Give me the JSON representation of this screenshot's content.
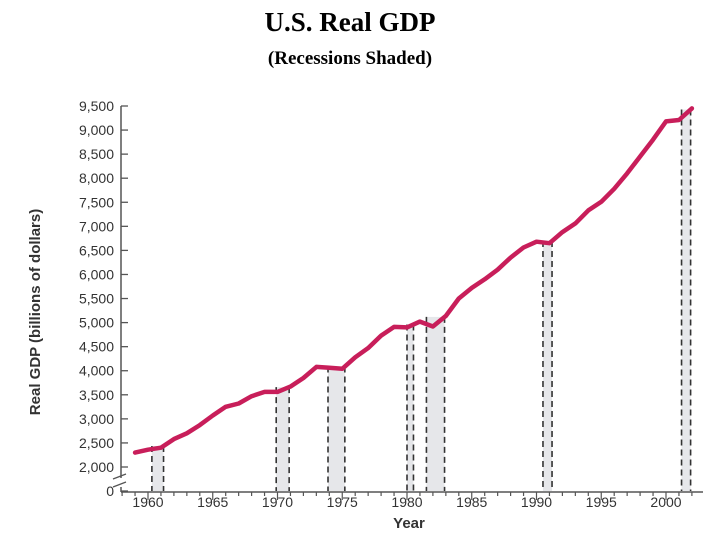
{
  "chart_data": {
    "type": "line",
    "title": "U.S. Real GDP",
    "subtitle": "(Recessions Shaded)",
    "xlabel": "Year",
    "ylabel": "Real GDP (billions of dollars)",
    "xlim": [
      1957,
      2003
    ],
    "ylim": [
      0,
      9500
    ],
    "axis_break": true,
    "grid": false,
    "x_ticks": [
      1960,
      1965,
      1970,
      1975,
      1980,
      1985,
      1990,
      1995,
      2000
    ],
    "x_tick_labels": [
      "1960",
      "1965",
      "1970",
      "1975",
      "1980",
      "1985",
      "1990",
      "1995",
      "2000"
    ],
    "y_ticks": [
      0,
      2000,
      2500,
      3000,
      3500,
      4000,
      4500,
      5000,
      5500,
      6000,
      6500,
      7000,
      7500,
      8000,
      8500,
      9000,
      9500
    ],
    "y_tick_labels": [
      "0",
      "2,000",
      "2,500",
      "3,000",
      "3,500",
      "4,000",
      "4,500",
      "5,000",
      "5,500",
      "6,000",
      "6,500",
      "7,000",
      "7,500",
      "8,000",
      "8,500",
      "9,000",
      "9,500"
    ],
    "series": [
      {
        "color": "#c81e5a",
        "x": [
          1959,
          1960,
          1961,
          1962,
          1963,
          1964,
          1965,
          1966,
          1967,
          1968,
          1969,
          1970,
          1971,
          1972,
          1973,
          1974,
          1975,
          1976,
          1977,
          1978,
          1979,
          1980,
          1981,
          1982,
          1983,
          1984,
          1985,
          1986,
          1987,
          1988,
          1989,
          1990,
          1991,
          1992,
          1993,
          1994,
          1995,
          1996,
          1997,
          1998,
          1999,
          2000,
          2001,
          2002
        ],
        "y": [
          2300,
          2360,
          2400,
          2580,
          2700,
          2870,
          3070,
          3250,
          3320,
          3470,
          3560,
          3560,
          3670,
          3850,
          4080,
          4060,
          4040,
          4280,
          4470,
          4730,
          4910,
          4900,
          5020,
          4920,
          5140,
          5500,
          5720,
          5900,
          6100,
          6350,
          6560,
          6680,
          6650,
          6880,
          7060,
          7330,
          7510,
          7780,
          8100,
          8450,
          8800,
          9180,
          9210,
          9450
        ]
      }
    ],
    "recessions": [
      [
        1960.3,
        1961.2
      ],
      [
        1969.9,
        1970.9
      ],
      [
        1973.9,
        1975.2
      ],
      [
        1980.0,
        1980.5
      ],
      [
        1981.5,
        1982.9
      ],
      [
        1990.5,
        1991.2
      ],
      [
        2001.2,
        2001.9
      ]
    ],
    "recession_shade_color": "#e6e7ea"
  }
}
